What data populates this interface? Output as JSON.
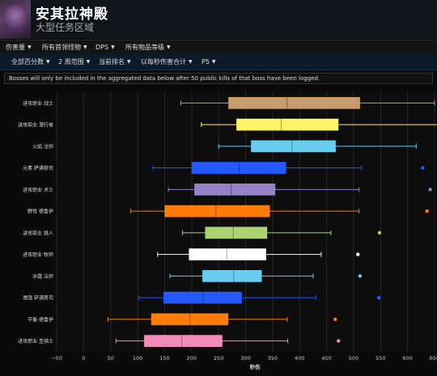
{
  "header": {
    "title": "安其拉神殿",
    "subtitle": "大型任务区域"
  },
  "nav_primary": [
    {
      "label": "伤害量"
    },
    {
      "label": "所有首领怪物"
    },
    {
      "label": "DPS"
    },
    {
      "label": "所有物品等级"
    }
  ],
  "nav_secondary": [
    {
      "label": "全部百分数"
    },
    {
      "label": "2 周范围"
    },
    {
      "label": "当前排名"
    },
    {
      "label": "以每秒伤害合计"
    },
    {
      "label": "P5"
    }
  ],
  "notice": "Bosses will only be included in the aggregated data below after 50 public kills of that boss have been logged.",
  "chart_data": {
    "type": "box",
    "xlabel": "秒伤",
    "xlim": [
      -50,
      650
    ],
    "xticks": [
      -50,
      0,
      50,
      100,
      150,
      200,
      250,
      300,
      350,
      400,
      450,
      500,
      550,
      600,
      650
    ],
    "categories": [
      "进攻职业 战士",
      "进攻职业 潜行者",
      "火焰 法师",
      "元素 萨满祭司",
      "进攻职业 术士",
      "野性 德鲁伊",
      "进攻职业 猎人",
      "进攻职业 牧师",
      "冰霜 法师",
      "增强 萨满祭司",
      "平衡 德鲁伊",
      "进攻职业 圣骑士"
    ],
    "series": [
      {
        "category": "进攻职业 战士",
        "min": 180,
        "q1": 268,
        "median": 377,
        "q3": 512,
        "max": 650,
        "outlier": null,
        "color": "#c69b6d"
      },
      {
        "category": "进攻职业 潜行者",
        "min": 218,
        "q1": 283,
        "median": 366,
        "q3": 472,
        "max": 676,
        "outlier": null,
        "color": "#fff468"
      },
      {
        "category": "火焰 法师",
        "min": 250,
        "q1": 310,
        "median": 386,
        "q3": 467,
        "max": 616,
        "outlier": null,
        "color": "#68ccef"
      },
      {
        "category": "元素 萨满祭司",
        "min": 128,
        "q1": 200,
        "median": 288,
        "q3": 375,
        "max": 515,
        "outlier": 628,
        "color": "#2359ff"
      },
      {
        "category": "进攻职业 术士",
        "min": 157,
        "q1": 205,
        "median": 273,
        "q3": 355,
        "max": 510,
        "outlier": 642,
        "color": "#9482c9"
      },
      {
        "category": "野性 德鲁伊",
        "min": 87,
        "q1": 150,
        "median": 245,
        "q3": 345,
        "max": 510,
        "outlier": 636,
        "color": "#ff7c0a"
      },
      {
        "category": "进攻职业 猎人",
        "min": 183,
        "q1": 225,
        "median": 277,
        "q3": 340,
        "max": 458,
        "outlier": 548,
        "color": "#aad372"
      },
      {
        "category": "进攻职业 牧师",
        "min": 137,
        "q1": 195,
        "median": 265,
        "q3": 338,
        "max": 440,
        "outlier": 508,
        "color": "#ffffff"
      },
      {
        "category": "冰霜 法师",
        "min": 160,
        "q1": 220,
        "median": 278,
        "q3": 330,
        "max": 425,
        "outlier": 512,
        "color": "#68ccef"
      },
      {
        "category": "增强 萨满祭司",
        "min": 102,
        "q1": 148,
        "median": 221,
        "q3": 293,
        "max": 430,
        "outlier": 547,
        "color": "#2359ff"
      },
      {
        "category": "平衡 德鲁伊",
        "min": 45,
        "q1": 125,
        "median": 197,
        "q3": 268,
        "max": 377,
        "outlier": 466,
        "color": "#ff7c0a"
      },
      {
        "category": "进攻职业 圣骑士",
        "min": 60,
        "q1": 112,
        "median": 182,
        "q3": 257,
        "max": 378,
        "outlier": 472,
        "color": "#f48cba"
      }
    ]
  }
}
